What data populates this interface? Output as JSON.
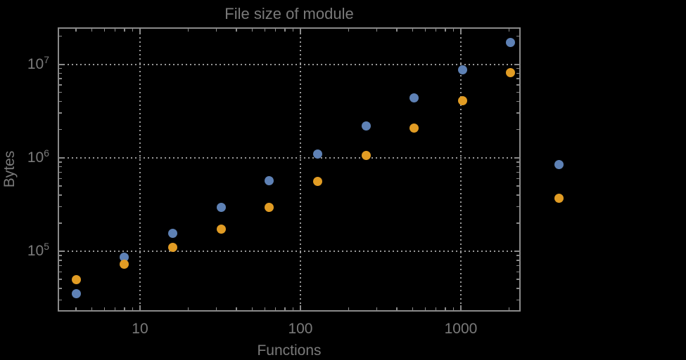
{
  "colors": {
    "background": "#000000",
    "text": "#7a7a7a",
    "frame": "#8a8a8a",
    "grid": "#999999"
  },
  "chart_data": {
    "type": "scatter",
    "title": "File size of module",
    "xlabel": "Functions",
    "ylabel": "Bytes",
    "x_scale": "log",
    "y_scale": "log",
    "x_range": [
      3.07,
      2360
    ],
    "y_range": [
      22600,
      24800000
    ],
    "grid": "dotted lines at decade ticks, all four frame edges ticked",
    "legend": "none",
    "points_clipped_to_frame": false,
    "x_ticks": [
      {
        "value": 10,
        "label": "10"
      },
      {
        "value": 100,
        "label": "100"
      },
      {
        "value": 1000,
        "label": "1000"
      }
    ],
    "y_ticks": [
      {
        "value": 100000,
        "label": "10",
        "exponent": "5"
      },
      {
        "value": 1000000,
        "label": "10",
        "exponent": "6"
      },
      {
        "value": 10000000,
        "label": "10",
        "exponent": "7"
      }
    ],
    "x": [
      4,
      8,
      16,
      32,
      64,
      128,
      256,
      512,
      1024,
      2048,
      4096
    ],
    "series": [
      {
        "name": "series-1-blue",
        "color": "#5e81b5",
        "values": [
          35000,
          86000,
          155000,
          293000,
          565000,
          1100000,
          2200000,
          4340000,
          8700000,
          17000000,
          840000
        ]
      },
      {
        "name": "series-2-orange",
        "color": "#e19c24",
        "values": [
          50000,
          73000,
          110000,
          172000,
          293000,
          556000,
          1050000,
          2070000,
          4100000,
          8200000,
          367000
        ]
      }
    ]
  }
}
